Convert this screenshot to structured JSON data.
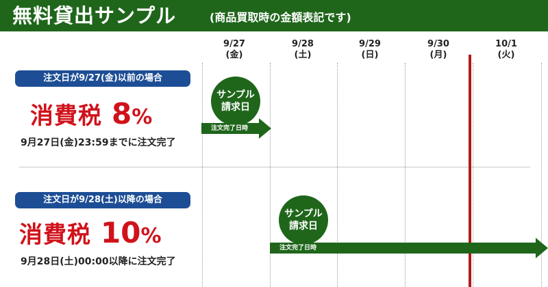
{
  "header": {
    "title": "無料貸出サンプル",
    "subtitle": "(商品買取時の金額表記です)"
  },
  "timeline": {
    "dates": [
      {
        "date": "9/27",
        "weekday": "(金)"
      },
      {
        "date": "9/28",
        "weekday": "(土)"
      },
      {
        "date": "9/29",
        "weekday": "(日)"
      },
      {
        "date": "9/30",
        "weekday": "(月)"
      },
      {
        "date": "10/1",
        "weekday": "(火)"
      }
    ]
  },
  "cases": [
    {
      "condition": "注文日が9/27(金)以前の場合",
      "tax_label": "消費税",
      "tax_rate": "8",
      "tax_unit": "%",
      "deadline": "9月27日(金)23:59までに注文完了",
      "badge_line1": "サンプル",
      "badge_line2": "請求日",
      "arrow_label": "注文完了日時"
    },
    {
      "condition": "注文日が9/28(土)以降の場合",
      "tax_label": "消費税",
      "tax_rate": "10",
      "tax_unit": "%",
      "deadline": "9月28日(土)00:00以降に注文完了",
      "badge_line1": "サンプル",
      "badge_line2": "請求日",
      "arrow_label": "注文完了日時"
    }
  ],
  "colors": {
    "green": "#1f661b",
    "blue": "#1d4e95",
    "red_text": "#d0121b",
    "red_line": "#b01a1a"
  }
}
